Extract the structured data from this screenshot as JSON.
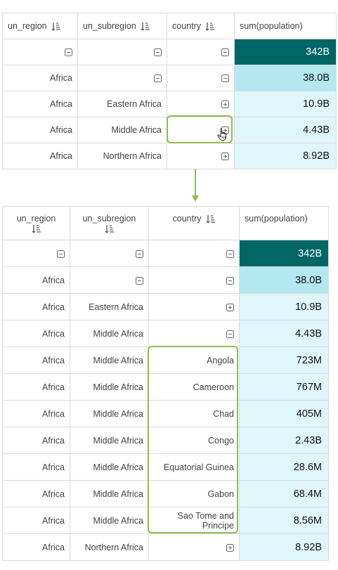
{
  "top_table": {
    "headers": [
      "un_region",
      "un_subregion",
      "country",
      "sum(population)"
    ],
    "rows": [
      {
        "region": "",
        "subregion": "",
        "country": "",
        "value": "342B",
        "icons": [
          "minus",
          "minus",
          "minus"
        ]
      },
      {
        "region": "Africa",
        "subregion": "",
        "country": "",
        "value": "38.0B",
        "icons": [
          "",
          "minus",
          "minus"
        ]
      },
      {
        "region": "Africa",
        "subregion": "Eastern Africa",
        "country": "",
        "value": "10.9B",
        "icons": [
          "",
          "",
          "plus"
        ]
      },
      {
        "region": "Africa",
        "subregion": "Middle Africa",
        "country": "",
        "value": "4.43B",
        "icons": [
          "",
          "",
          "plus"
        ]
      },
      {
        "region": "Africa",
        "subregion": "Northern Africa",
        "country": "",
        "value": "8.92B",
        "icons": [
          "",
          "",
          "plus"
        ]
      }
    ]
  },
  "bottom_table": {
    "headers": [
      "un_region",
      "un_subregion",
      "country",
      "sum(population)"
    ],
    "rows": [
      {
        "region": "",
        "subregion": "",
        "country": "",
        "value": "342B",
        "icons": [
          "minus",
          "minus",
          "minus"
        ]
      },
      {
        "region": "Africa",
        "subregion": "",
        "country": "",
        "value": "38.0B",
        "icons": [
          "",
          "minus",
          "minus"
        ]
      },
      {
        "region": "Africa",
        "subregion": "Eastern Africa",
        "country": "",
        "value": "10.9B",
        "icons": [
          "",
          "",
          "plus"
        ]
      },
      {
        "region": "Africa",
        "subregion": "Middle Africa",
        "country": "",
        "value": "4.43B",
        "icons": [
          "",
          "",
          "minus"
        ]
      },
      {
        "region": "Africa",
        "subregion": "Middle Africa",
        "country": "Angola",
        "value": "723M",
        "icons": [
          "",
          "",
          ""
        ]
      },
      {
        "region": "Africa",
        "subregion": "Middle Africa",
        "country": "Cameroon",
        "value": "767M",
        "icons": [
          "",
          "",
          ""
        ]
      },
      {
        "region": "Africa",
        "subregion": "Middle Africa",
        "country": "Chad",
        "value": "405M",
        "icons": [
          "",
          "",
          ""
        ]
      },
      {
        "region": "Africa",
        "subregion": "Middle Africa",
        "country": "Congo",
        "value": "2.43B",
        "icons": [
          "",
          "",
          ""
        ]
      },
      {
        "region": "Africa",
        "subregion": "Middle Africa",
        "country": "Equatorial Guinea",
        "value": "28.6M",
        "icons": [
          "",
          "",
          ""
        ]
      },
      {
        "region": "Africa",
        "subregion": "Middle Africa",
        "country": "Gabon",
        "value": "68.4M",
        "icons": [
          "",
          "",
          ""
        ]
      },
      {
        "region": "Africa",
        "subregion": "Middle Africa",
        "country": "Sao Tome and Principe",
        "value": "8.56M",
        "icons": [
          "",
          "",
          ""
        ]
      },
      {
        "region": "Africa",
        "subregion": "Northern Africa",
        "country": "",
        "value": "8.92B",
        "icons": [
          "",
          "",
          "plus"
        ]
      }
    ]
  },
  "colors": {
    "dark_cell": "#006666",
    "mid_cell": "#b3e8f1",
    "light_cell": "#dff6fa",
    "highlight_border": "#8fbd4e",
    "arrow": "#8fbd4e"
  },
  "icons": {
    "sort": "sort-descending-icon",
    "expand": "plus-square-icon",
    "collapse": "minus-square-icon",
    "cursor": "hand-pointer-icon",
    "arrow": "down-arrow-icon"
  }
}
